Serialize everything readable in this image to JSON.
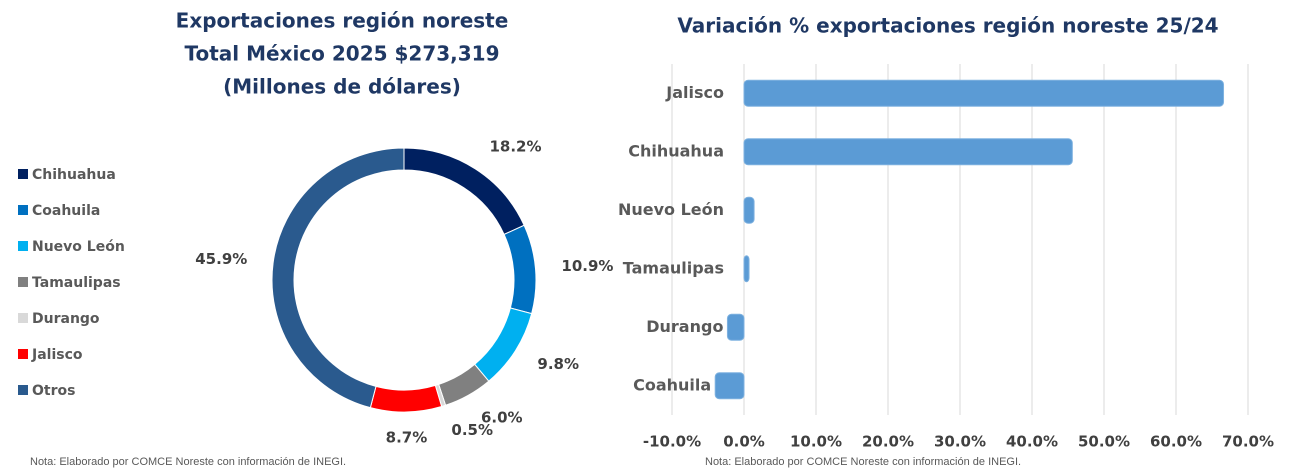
{
  "chart_data": [
    {
      "type": "pie",
      "title": [
        "Exportaciones región noreste",
        "Total México 2025 $273,319",
        "(Millones de dólares)"
      ],
      "categories": [
        "Chihuahua",
        "Coahuila",
        "Nuevo León",
        "Tamaulipas",
        "Durango",
        "Jalisco",
        "Otros"
      ],
      "values": [
        18.2,
        10.9,
        9.8,
        6.0,
        0.5,
        8.7,
        45.9
      ],
      "value_labels": [
        "18.2%",
        "10.9%",
        "9.8%",
        "6.0%",
        "0.5%",
        "8.7%",
        "45.9%"
      ],
      "colors": [
        "#002060",
        "#0070c0",
        "#00b0f0",
        "#808080",
        "#d9d9d9",
        "#ff0000",
        "#2a5a8e"
      ],
      "legend": "left",
      "note": "Nota: Elaborado por COMCE Noreste con información de INEGI."
    },
    {
      "type": "hbar",
      "title": "Variación % exportaciones región noreste 25/24",
      "categories": [
        "Jalisco",
        "Chihuahua",
        "Nuevo León",
        "Tamaulipas",
        "Durango",
        "Coahuila"
      ],
      "values": [
        66.6,
        45.6,
        1.4,
        0.7,
        -2.3,
        -4.0
      ],
      "color": "#5b9bd5",
      "xlim": [
        -10,
        70
      ],
      "xticks": [
        {
          "value": -10,
          "label": "-10.0%"
        },
        {
          "value": 0,
          "label": "0.0%"
        },
        {
          "value": 10,
          "label": "10.0%"
        },
        {
          "value": 20,
          "label": "20.0%"
        },
        {
          "value": 30,
          "label": "30.0%"
        },
        {
          "value": 40,
          "label": "40.0%"
        },
        {
          "value": 50,
          "label": "50.0%"
        },
        {
          "value": 60,
          "label": "60.0%"
        },
        {
          "value": 70,
          "label": "70.0%"
        }
      ],
      "grid": true,
      "note": "Nota: Elaborado por COMCE Noreste con información de INEGI."
    }
  ]
}
